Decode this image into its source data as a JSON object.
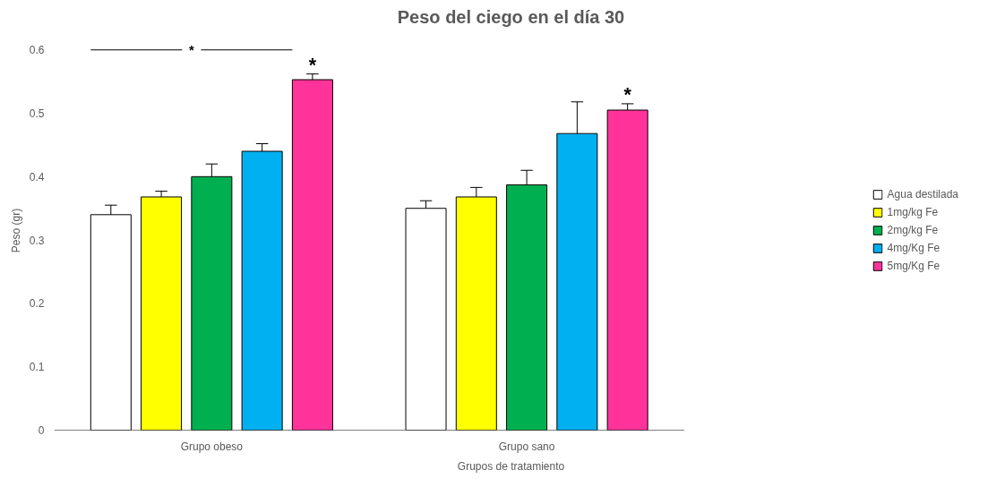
{
  "chart_data": {
    "type": "bar",
    "title": "Peso del ciego en el día 30",
    "xlabel": "Grupos de tratamiento",
    "ylabel": "Peso (gr)",
    "categories": [
      "Grupo obeso",
      "Grupo sano"
    ],
    "series": [
      {
        "name": "Agua destilada",
        "color": "#ffffff",
        "values": [
          0.34,
          0.35
        ],
        "errors": [
          [
            0.34,
            0.355
          ],
          [
            0.35,
            0.362
          ]
        ]
      },
      {
        "name": "1mg/kg Fe",
        "color": "#ffff00",
        "values": [
          0.368,
          0.368
        ],
        "errors": [
          [
            0.368,
            0.377
          ],
          [
            0.368,
            0.383
          ]
        ]
      },
      {
        "name": "2mg/kg Fe",
        "color": "#00b050",
        "values": [
          0.4,
          0.387
        ],
        "errors": [
          [
            0.4,
            0.42
          ],
          [
            0.387,
            0.41
          ]
        ]
      },
      {
        "name": "4mg/Kg Fe",
        "color": "#00b0f0",
        "values": [
          0.44,
          0.468
        ],
        "errors": [
          [
            0.44,
            0.452
          ],
          [
            0.468,
            0.518
          ]
        ]
      },
      {
        "name": "5mg/Kg Fe",
        "color": "#ff3399",
        "values": [
          0.553,
          0.505
        ],
        "errors": [
          [
            0.553,
            0.562
          ],
          [
            0.505,
            0.515
          ]
        ]
      }
    ],
    "annotations": [
      "*",
      "*",
      "*"
    ],
    "ylim": [
      0,
      0.6
    ],
    "yticks": [
      0,
      0.1,
      0.2,
      0.3,
      0.4,
      0.5,
      0.6
    ],
    "grid": false,
    "legend": "right"
  }
}
